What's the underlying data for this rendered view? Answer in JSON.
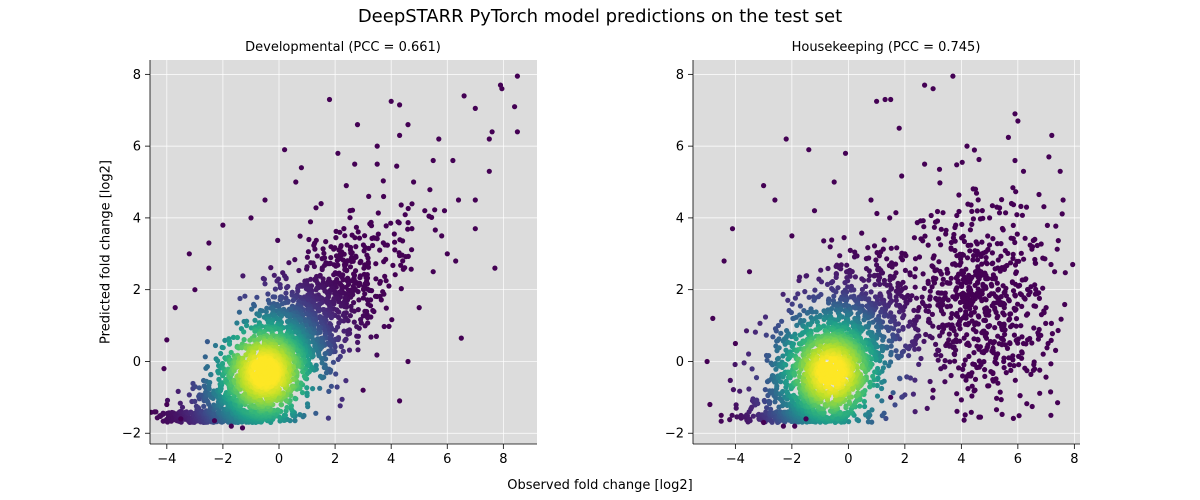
{
  "title": "DeepSTARR PyTorch model predictions on the test set",
  "xlabel": "Observed fold change [log2]",
  "ylabel": "Predicted fold change [log2]",
  "colors": {
    "plot_bg": "#dcdcdc",
    "grid": "#ffffff",
    "colormap": "viridis"
  },
  "chart_data": [
    {
      "type": "scatter",
      "title": "Developmental (PCC = 0.661)",
      "xlim": [
        -4.6,
        9.2
      ],
      "ylim": [
        -2.3,
        8.4
      ],
      "xticks": [
        -4,
        -2,
        0,
        2,
        4,
        6,
        8
      ],
      "yticks": [
        -2,
        0,
        2,
        4,
        6,
        8
      ],
      "grid": true,
      "density_center": [
        -0.5,
        -0.3
      ],
      "pcc": 0.661,
      "points": [
        [
          8.5,
          7.95
        ],
        [
          8.4,
          7.1
        ],
        [
          7.9,
          7.7
        ],
        [
          7.95,
          7.6
        ],
        [
          7.0,
          7.05
        ],
        [
          6.6,
          7.4
        ],
        [
          4.0,
          7.25
        ],
        [
          4.3,
          7.15
        ],
        [
          1.8,
          7.3
        ],
        [
          4.6,
          6.6
        ],
        [
          4.3,
          6.3
        ],
        [
          5.7,
          6.2
        ],
        [
          7.5,
          6.2
        ],
        [
          7.6,
          6.4
        ],
        [
          2.8,
          6.6
        ],
        [
          3.5,
          6.0
        ],
        [
          0.2,
          5.9
        ],
        [
          2.1,
          5.8
        ],
        [
          6.2,
          5.6
        ],
        [
          7.5,
          5.3
        ],
        [
          8.5,
          6.4
        ],
        [
          5.5,
          5.6
        ],
        [
          3.5,
          5.5
        ],
        [
          2.7,
          5.5
        ],
        [
          0.8,
          5.4
        ],
        [
          6.4,
          4.5
        ],
        [
          6.5,
          0.65
        ],
        [
          7.0,
          3.7
        ],
        [
          7.7,
          2.6
        ],
        [
          -3.2,
          3.0
        ],
        [
          -2.5,
          2.6
        ],
        [
          -3.7,
          1.5
        ],
        [
          -4.0,
          0.6
        ],
        [
          -4.1,
          -0.2
        ],
        [
          -4.0,
          -1.2
        ],
        [
          -3.5,
          -1.6
        ],
        [
          -2.3,
          -1.65
        ],
        [
          -1.7,
          -1.8
        ],
        [
          -1.3,
          -1.85
        ],
        [
          4.3,
          -1.1
        ],
        [
          4.6,
          0.0
        ],
        [
          5.0,
          1.5
        ],
        [
          5.5,
          2.5
        ],
        [
          6.0,
          3.0
        ],
        [
          7.0,
          4.5
        ],
        [
          3.0,
          -0.8
        ],
        [
          1.5,
          4.4
        ],
        [
          0.6,
          5.0
        ],
        [
          -0.5,
          4.5
        ],
        [
          -1.0,
          4.0
        ],
        [
          -2.0,
          3.8
        ],
        [
          -2.5,
          3.3
        ],
        [
          -3.0,
          2.0
        ],
        [
          2.4,
          4.9
        ],
        [
          3.2,
          4.6
        ],
        [
          4.8,
          5.0
        ],
        [
          5.2,
          4.2
        ],
        [
          5.8,
          3.5
        ],
        [
          6.3,
          2.8
        ]
      ]
    },
    {
      "type": "scatter",
      "title": "Housekeeping (PCC = 0.745)",
      "xlim": [
        -5.5,
        8.2
      ],
      "ylim": [
        -2.3,
        8.4
      ],
      "xticks": [
        -4,
        -2,
        0,
        2,
        4,
        6,
        8
      ],
      "yticks": [
        -2,
        0,
        2,
        4,
        6,
        8
      ],
      "grid": true,
      "density_center": [
        -0.6,
        -0.3
      ],
      "pcc": 0.745,
      "points": [
        [
          3.7,
          7.95
        ],
        [
          2.7,
          7.7
        ],
        [
          3.0,
          7.6
        ],
        [
          1.5,
          7.3
        ],
        [
          1.0,
          7.25
        ],
        [
          1.3,
          7.3
        ],
        [
          5.9,
          6.9
        ],
        [
          6.0,
          6.7
        ],
        [
          7.2,
          6.3
        ],
        [
          -2.2,
          6.2
        ],
        [
          -1.4,
          5.9
        ],
        [
          -0.1,
          5.8
        ],
        [
          4.2,
          6.0
        ],
        [
          5.9,
          5.6
        ],
        [
          7.1,
          5.7
        ],
        [
          7.5,
          5.3
        ],
        [
          -3.0,
          4.9
        ],
        [
          -2.6,
          4.5
        ],
        [
          -4.1,
          3.7
        ],
        [
          -4.4,
          2.8
        ],
        [
          -4.8,
          1.2
        ],
        [
          -5.0,
          0.0
        ],
        [
          -4.9,
          -1.2
        ],
        [
          -4.5,
          -1.5
        ],
        [
          -3.0,
          -1.7
        ],
        [
          -2.3,
          -1.8
        ],
        [
          -1.9,
          -1.8
        ],
        [
          -1.5,
          -1.6
        ],
        [
          1.5,
          -1.0
        ],
        [
          3.0,
          -0.8
        ],
        [
          4.5,
          -0.5
        ],
        [
          5.5,
          0.0
        ],
        [
          6.2,
          0.5
        ],
        [
          7.0,
          1.5
        ],
        [
          7.3,
          2.5
        ],
        [
          7.6,
          4.5
        ],
        [
          6.6,
          3.4
        ],
        [
          5.0,
          4.0
        ],
        [
          4.5,
          2.5
        ],
        [
          5.0,
          1.0
        ],
        [
          3.5,
          0.5
        ],
        [
          2.5,
          1.5
        ],
        [
          2.0,
          3.0
        ],
        [
          0.8,
          4.5
        ],
        [
          -0.5,
          5.0
        ],
        [
          -1.2,
          4.2
        ],
        [
          -2.0,
          3.5
        ],
        [
          -3.5,
          2.5
        ],
        [
          -4.0,
          0.5
        ],
        [
          3.8,
          3.8
        ],
        [
          4.5,
          4.8
        ],
        [
          2.7,
          5.5
        ],
        [
          1.8,
          6.5
        ],
        [
          6.2,
          5.3
        ]
      ]
    }
  ]
}
